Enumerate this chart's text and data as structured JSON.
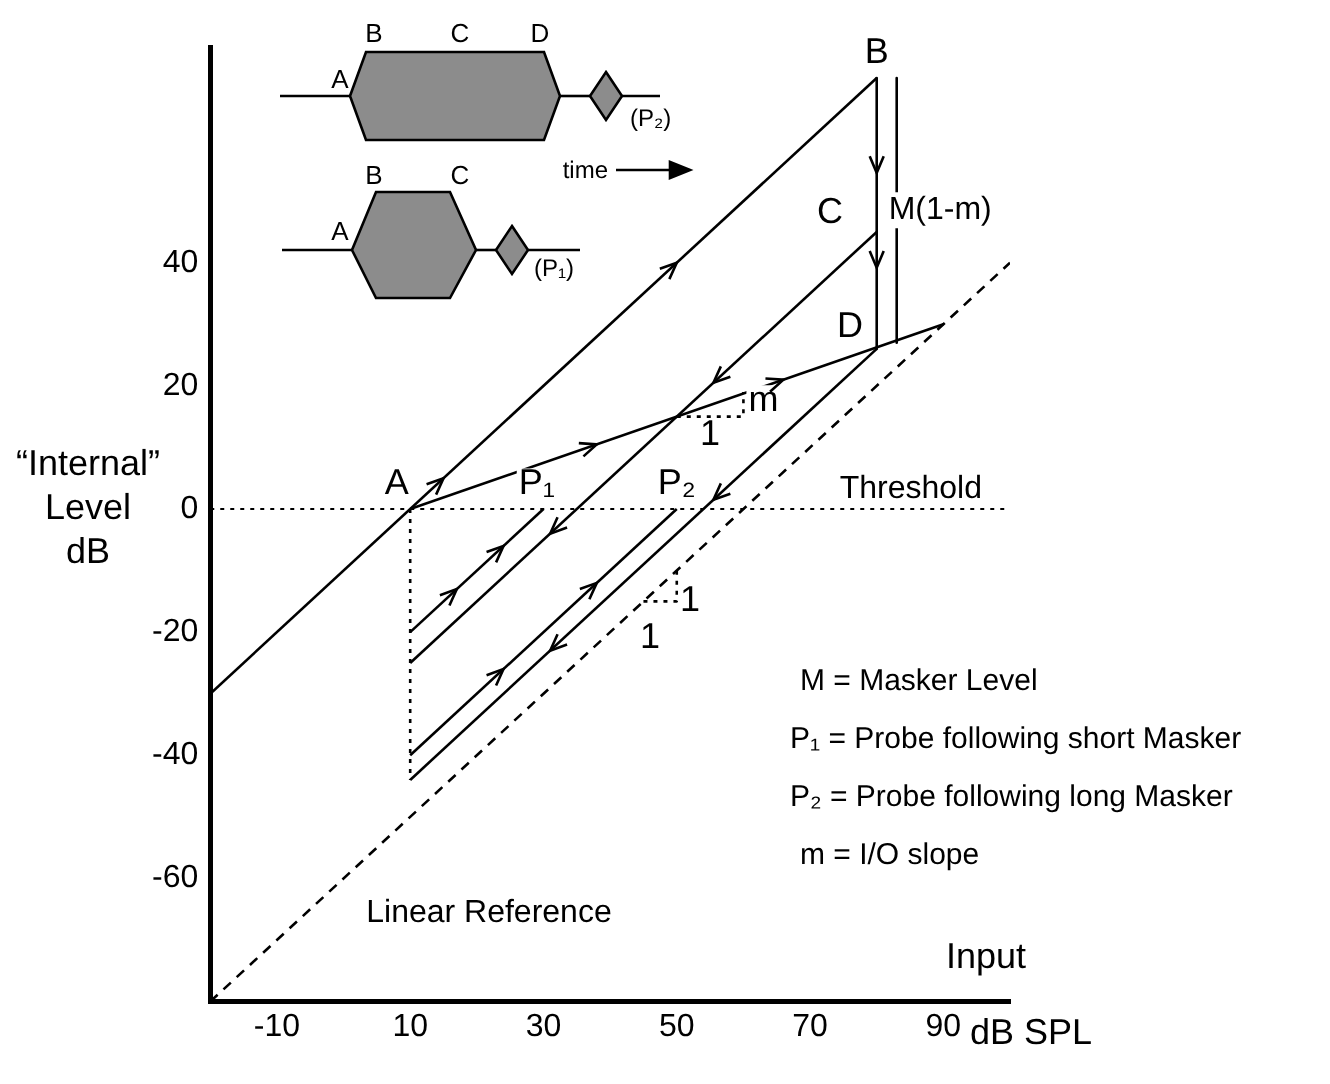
{
  "chart_data": {
    "type": "line",
    "xlabel": "Input dB SPL",
    "ylabel": "“Internal” Level dB",
    "xlim": [
      -20,
      100
    ],
    "xticks": [
      -10,
      10,
      30,
      50,
      70,
      90
    ],
    "ylim": [
      -80,
      75
    ],
    "yticks": [
      -60,
      -40,
      -20,
      0,
      20,
      40
    ],
    "marker": "none",
    "series": [
      {
        "color": "#000000",
        "line_style": "dashed",
        "x": [
          -20,
          100
        ],
        "values": [
          -80,
          40
        ]
      },
      {
        "color": "#000000",
        "line_style": "solid",
        "x": [
          -20,
          80
        ],
        "values": [
          -30,
          70
        ]
      },
      {
        "color": "#000000",
        "line_style": "solid",
        "x": [
          10,
          90
        ],
        "values": [
          0,
          30
        ]
      },
      {
        "color": "#000000",
        "line_style": "solid",
        "x": [
          80,
          80
        ],
        "values": [
          70,
          26
        ]
      },
      {
        "color": "#000000",
        "line_style": "solid",
        "x": [
          80,
          10
        ],
        "values": [
          45,
          -25
        ]
      },
      {
        "color": "#000000",
        "line_style": "solid",
        "x": [
          10,
          30
        ],
        "values": [
          -20,
          0
        ]
      },
      {
        "color": "#000000",
        "line_style": "solid",
        "x": [
          80,
          10
        ],
        "values": [
          26,
          -44
        ]
      },
      {
        "color": "#000000",
        "line_style": "solid",
        "x": [
          10,
          50
        ],
        "values": [
          -40,
          0
        ]
      },
      {
        "color": "#000000",
        "line_style": "dotted",
        "x": [
          10,
          10
        ],
        "values": [
          0,
          -44
        ]
      },
      {
        "color": "#000000",
        "line_style": "dotted",
        "x": [
          50,
          60,
          60
        ],
        "values": [
          15,
          15,
          19
        ]
      },
      {
        "color": "#000000",
        "line_style": "dotted",
        "x": [
          45,
          50,
          50
        ],
        "values": [
          -15,
          -15,
          -10
        ]
      },
      {
        "color": "#000000",
        "line_style": "solid",
        "x": [
          83,
          83
        ],
        "values": [
          70,
          27
        ]
      }
    ],
    "ref_lines": [
      {
        "axis": "y",
        "value": 0,
        "label": "Threshold",
        "line_style": "dotted"
      }
    ],
    "annotations": [
      "A",
      "B",
      "C",
      "D",
      "(P₂)",
      "A",
      "B",
      "C",
      "(P₁)",
      "time",
      {
        "text": "A",
        "x": 8,
        "y": 4
      },
      {
        "text": "B",
        "x": 80,
        "y": 74
      },
      {
        "text": "C",
        "x": 73,
        "y": 48
      },
      {
        "text": "D",
        "x": 76,
        "y": 29.5
      },
      {
        "text": "P₁",
        "x": 29,
        "y": 4
      },
      {
        "text": "P₂",
        "x": 50,
        "y": 4
      },
      {
        "text": "m",
        "x": 63,
        "y": 17.5
      },
      {
        "text": "1",
        "x": 55,
        "y": 12
      },
      {
        "text": "1",
        "x": 52,
        "y": -15
      },
      {
        "text": "1",
        "x": 46,
        "y": -21
      },
      "M(1-m)",
      "Linear Reference",
      "M = Masker Level",
      "P₁ = Probe following short Masker",
      "P₂ = Probe following long Masker",
      "m = I/O slope"
    ]
  }
}
